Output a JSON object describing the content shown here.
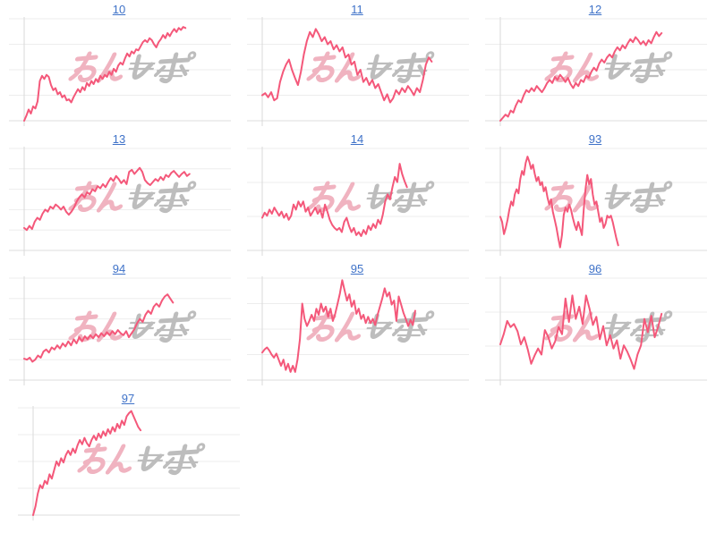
{
  "page": {
    "background": "#ffffff",
    "description": "Grid of unlabeled pink sparkline charts, each titled by a blue numeric link, with a minrepo (みんレポ) watermark over every plot"
  },
  "colors": {
    "line": "#f4587a",
    "link": "#3f72c8",
    "grid": "#ededed",
    "grid_strong": "#dcdcdc",
    "axis": "#d9d9d9",
    "watermark_pink": "#f0b3c0",
    "watermark_gray": "#bdbdbd",
    "background": "#ffffff"
  },
  "watermark": {
    "text": "みんレポ",
    "pink_part": "みん",
    "gray_part": "レポ"
  },
  "chart_notes": "Charts have no axis tick labels. 'values' are normalized vertical positions of the line sampled left-to-right (0 = top gridline, 1 = bottom gridline). 'x_end' is the fraction of the plot width the line spans from the left axis. 'gridlines' counts evenly spaced horizontal lines including top and bottom.",
  "chart_data": [
    {
      "id": "10",
      "label": "10",
      "type": "line",
      "gridlines": 5,
      "x_end": 0.78,
      "tall": false,
      "values": [
        1,
        0.95,
        0.89,
        0.93,
        0.86,
        0.88,
        0.81,
        0.61,
        0.56,
        0.59,
        0.55,
        0.57,
        0.65,
        0.7,
        0.68,
        0.74,
        0.72,
        0.77,
        0.75,
        0.8,
        0.79,
        0.82,
        0.77,
        0.73,
        0.69,
        0.72,
        0.67,
        0.7,
        0.63,
        0.66,
        0.61,
        0.64,
        0.59,
        0.62,
        0.56,
        0.59,
        0.55,
        0.57,
        0.52,
        0.55,
        0.49,
        0.52,
        0.46,
        0.43,
        0.45,
        0.39,
        0.34,
        0.37,
        0.32,
        0.34,
        0.3,
        0.31,
        0.27,
        0.23,
        0.21,
        0.23,
        0.19,
        0.21,
        0.25,
        0.28,
        0.23,
        0.2,
        0.16,
        0.19,
        0.14,
        0.17,
        0.13,
        0.1,
        0.13,
        0.09,
        0.11,
        0.08,
        0.09
      ]
    },
    {
      "id": "11",
      "label": "11",
      "type": "line",
      "gridlines": 5,
      "x_end": 0.82,
      "tall": false,
      "values": [
        0.75,
        0.73,
        0.77,
        0.72,
        0.8,
        0.78,
        0.62,
        0.52,
        0.45,
        0.4,
        0.5,
        0.58,
        0.65,
        0.52,
        0.35,
        0.22,
        0.13,
        0.18,
        0.1,
        0.15,
        0.22,
        0.18,
        0.25,
        0.22,
        0.3,
        0.26,
        0.32,
        0.28,
        0.38,
        0.35,
        0.45,
        0.42,
        0.55,
        0.5,
        0.62,
        0.58,
        0.65,
        0.6,
        0.68,
        0.64,
        0.72,
        0.8,
        0.74,
        0.82,
        0.78,
        0.7,
        0.74,
        0.68,
        0.72,
        0.66,
        0.7,
        0.75,
        0.68,
        0.72,
        0.6,
        0.45,
        0.38,
        0.42
      ]
    },
    {
      "id": "12",
      "label": "12",
      "type": "line",
      "gridlines": 5,
      "x_end": 0.78,
      "tall": false,
      "values": [
        1,
        0.97,
        0.94,
        0.96,
        0.9,
        0.92,
        0.85,
        0.8,
        0.82,
        0.75,
        0.7,
        0.72,
        0.68,
        0.71,
        0.66,
        0.69,
        0.72,
        0.68,
        0.63,
        0.6,
        0.63,
        0.57,
        0.6,
        0.55,
        0.58,
        0.62,
        0.58,
        0.64,
        0.68,
        0.63,
        0.66,
        0.6,
        0.62,
        0.56,
        0.58,
        0.52,
        0.48,
        0.51,
        0.44,
        0.4,
        0.43,
        0.38,
        0.35,
        0.38,
        0.32,
        0.28,
        0.31,
        0.26,
        0.29,
        0.24,
        0.2,
        0.23,
        0.18,
        0.21,
        0.25,
        0.22,
        0.26,
        0.21,
        0.24,
        0.18,
        0.13,
        0.17,
        0.14
      ]
    },
    {
      "id": "13",
      "label": "13",
      "type": "line",
      "gridlines": 6,
      "x_end": 0.8,
      "tall": false,
      "values": [
        0.78,
        0.8,
        0.76,
        0.79,
        0.72,
        0.68,
        0.7,
        0.64,
        0.6,
        0.62,
        0.57,
        0.59,
        0.55,
        0.57,
        0.6,
        0.57,
        0.62,
        0.65,
        0.62,
        0.58,
        0.52,
        0.48,
        0.45,
        0.48,
        0.43,
        0.45,
        0.4,
        0.42,
        0.37,
        0.39,
        0.35,
        0.38,
        0.33,
        0.29,
        0.32,
        0.27,
        0.3,
        0.34,
        0.31,
        0.35,
        0.23,
        0.21,
        0.25,
        0.22,
        0.19,
        0.23,
        0.31,
        0.34,
        0.36,
        0.33,
        0.3,
        0.32,
        0.28,
        0.31,
        0.26,
        0.28,
        0.24,
        0.22,
        0.25,
        0.28,
        0.25,
        0.23,
        0.27,
        0.25
      ]
    },
    {
      "id": "14",
      "label": "14",
      "type": "line",
      "gridlines": 4,
      "x_end": 0.7,
      "tall": false,
      "values": [
        0.68,
        0.63,
        0.66,
        0.6,
        0.64,
        0.58,
        0.62,
        0.66,
        0.62,
        0.68,
        0.64,
        0.7,
        0.66,
        0.55,
        0.6,
        0.52,
        0.57,
        0.52,
        0.62,
        0.58,
        0.66,
        0.62,
        0.58,
        0.64,
        0.6,
        0.68,
        0.55,
        0.62,
        0.7,
        0.75,
        0.78,
        0.8,
        0.78,
        0.82,
        0.72,
        0.68,
        0.76,
        0.82,
        0.78,
        0.85,
        0.82,
        0.86,
        0.8,
        0.84,
        0.76,
        0.8,
        0.74,
        0.78,
        0.7,
        0.74,
        0.65,
        0.52,
        0.45,
        0.5,
        0.38,
        0.28,
        0.33,
        0.15,
        0.25,
        0.32,
        0.38
      ]
    },
    {
      "id": "93",
      "label": "93",
      "type": "line",
      "gridlines": 4,
      "x_end": 0.57,
      "tall": false,
      "values": [
        0.67,
        0.72,
        0.84,
        0.78,
        0.7,
        0.6,
        0.52,
        0.56,
        0.45,
        0.4,
        0.44,
        0.3,
        0.22,
        0.26,
        0.14,
        0.08,
        0.13,
        0.2,
        0.16,
        0.25,
        0.32,
        0.28,
        0.36,
        0.33,
        0.42,
        0.38,
        0.48,
        0.55,
        0.5,
        0.62,
        0.7,
        0.78,
        0.88,
        0.97,
        0.85,
        0.65,
        0.58,
        0.62,
        0.55,
        0.6,
        0.68,
        0.75,
        0.8,
        0.72,
        0.78,
        0.85,
        0.6,
        0.4,
        0.26,
        0.35,
        0.3,
        0.45,
        0.55,
        0.52,
        0.62,
        0.72,
        0.68,
        0.78,
        0.74,
        0.66,
        0.68,
        0.66,
        0.72,
        0.8,
        0.88,
        0.95
      ]
    },
    {
      "id": "94",
      "label": "94",
      "type": "line",
      "gridlines": 6,
      "x_end": 0.72,
      "tall": false,
      "values": [
        0.79,
        0.8,
        0.78,
        0.82,
        0.8,
        0.76,
        0.78,
        0.72,
        0.7,
        0.73,
        0.68,
        0.7,
        0.66,
        0.69,
        0.64,
        0.67,
        0.62,
        0.66,
        0.6,
        0.64,
        0.58,
        0.62,
        0.57,
        0.6,
        0.56,
        0.59,
        0.55,
        0.58,
        0.54,
        0.57,
        0.53,
        0.56,
        0.52,
        0.55,
        0.51,
        0.54,
        0.56,
        0.52,
        0.58,
        0.54,
        0.5,
        0.44,
        0.4,
        0.43,
        0.36,
        0.32,
        0.35,
        0.28,
        0.25,
        0.28,
        0.22,
        0.18,
        0.16,
        0.2,
        0.24
      ]
    },
    {
      "id": "95",
      "label": "95",
      "type": "line",
      "gridlines": 5,
      "x_end": 0.74,
      "tall": false,
      "values": [
        0.73,
        0.7,
        0.68,
        0.71,
        0.75,
        0.78,
        0.74,
        0.8,
        0.86,
        0.8,
        0.9,
        0.84,
        0.92,
        0.86,
        0.92,
        0.8,
        0.6,
        0.25,
        0.4,
        0.47,
        0.42,
        0.36,
        0.42,
        0.3,
        0.36,
        0.25,
        0.33,
        0.28,
        0.38,
        0.3,
        0.42,
        0.35,
        0.25,
        0.15,
        0.02,
        0.12,
        0.22,
        0.16,
        0.28,
        0.22,
        0.35,
        0.3,
        0.4,
        0.36,
        0.44,
        0.38,
        0.44,
        0.4,
        0.46,
        0.36,
        0.28,
        0.2,
        0.1,
        0.18,
        0.14,
        0.26,
        0.22,
        0.42,
        0.18,
        0.26,
        0.34,
        0.4,
        0.47,
        0.41,
        0.46,
        0.32
      ]
    },
    {
      "id": "96",
      "label": "96",
      "type": "line",
      "gridlines": 4,
      "x_end": 0.78,
      "tall": false,
      "values": [
        0.65,
        0.55,
        0.42,
        0.48,
        0.45,
        0.52,
        0.65,
        0.58,
        0.7,
        0.84,
        0.76,
        0.69,
        0.75,
        0.51,
        0.58,
        0.69,
        0.62,
        0.48,
        0.55,
        0.2,
        0.43,
        0.17,
        0.4,
        0.28,
        0.45,
        0.17,
        0.3,
        0.46,
        0.38,
        0.6,
        0.47,
        0.66,
        0.56,
        0.69,
        0.61,
        0.79,
        0.66,
        0.72,
        0.8,
        0.89,
        0.75,
        0.66,
        0.4,
        0.53,
        0.37,
        0.58,
        0.48,
        0.35
      ]
    },
    {
      "id": "97",
      "label": "97",
      "type": "line",
      "gridlines": 5,
      "x_end": 0.52,
      "tall": true,
      "values": [
        1,
        0.92,
        0.8,
        0.72,
        0.75,
        0.68,
        0.71,
        0.62,
        0.66,
        0.58,
        0.5,
        0.54,
        0.47,
        0.51,
        0.44,
        0.4,
        0.44,
        0.38,
        0.42,
        0.35,
        0.3,
        0.34,
        0.28,
        0.33,
        0.36,
        0.3,
        0.26,
        0.3,
        0.24,
        0.28,
        0.22,
        0.26,
        0.2,
        0.24,
        0.18,
        0.22,
        0.15,
        0.19,
        0.12,
        0.16,
        0.08,
        0.05,
        0.03,
        0.08,
        0.13,
        0.18,
        0.21
      ]
    }
  ]
}
